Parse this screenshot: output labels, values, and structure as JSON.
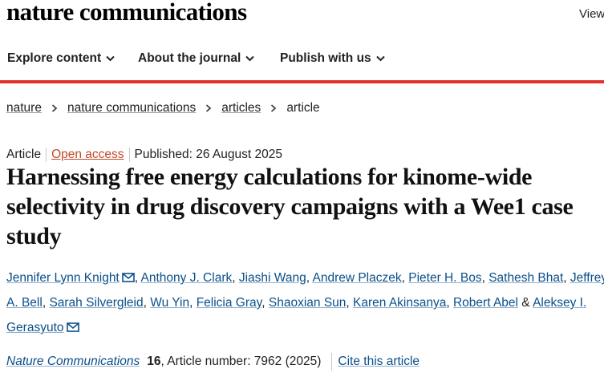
{
  "site": {
    "logo": "nature communications",
    "view_link": "View"
  },
  "nav": {
    "items": [
      {
        "label": "Explore content"
      },
      {
        "label": "About the journal"
      },
      {
        "label": "Publish with us"
      }
    ]
  },
  "breadcrumb": {
    "items": [
      "nature",
      "nature communications",
      "articles"
    ],
    "current": "article"
  },
  "article": {
    "type": "Article",
    "access": "Open access",
    "published": "Published: 26 August 2025",
    "title": "Harnessing free energy calculations for kinome-wide selectivity in drug discovery campaigns with a Wee1 case study",
    "authors": [
      "Jennifer Lynn Knight",
      "Anthony J. Clark",
      "Jiashi Wang",
      "Andrew Placzek",
      "Pieter H. Bos",
      "Sathesh Bhat",
      "Jeffrey",
      "A. Bell",
      "Sarah Silvergleid",
      "Wu Yin",
      "Felicia Gray",
      "Shaoxian Sun",
      "Karen Akinsanya",
      "Robert Abel",
      "Aleksey I.",
      "Gerasyuto"
    ],
    "author_separator": ",",
    "author_last_joiner": "&",
    "journal": "Nature Communications",
    "volume": "16",
    "article_number": ", Article number: 7962 (2025)",
    "cite_label": "Cite this article"
  },
  "colors": {
    "accent_red": "#e0312a",
    "link_blue": "#0b4f8a",
    "open_access": "#c24a26"
  },
  "icons": {
    "chevron": "chevron-down-icon",
    "separator": "chevron-right-icon",
    "mail": "envelope-icon"
  }
}
